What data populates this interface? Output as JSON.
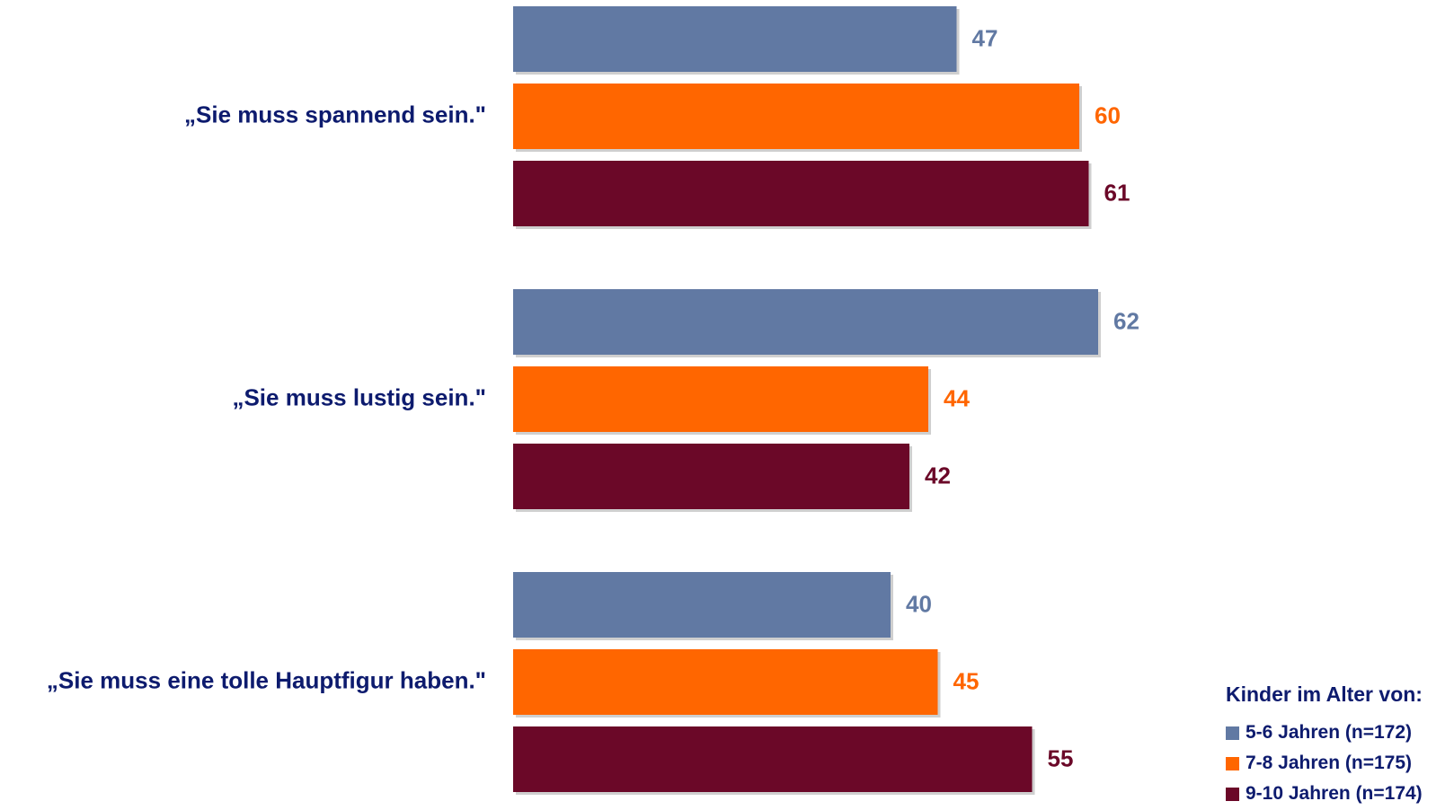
{
  "chart_data": {
    "type": "bar",
    "orientation": "horizontal",
    "categories": [
      "„Sie muss spannend sein.\"",
      "„Sie muss lustig sein.\"",
      "„Sie muss eine tolle Hauptfigur haben.\""
    ],
    "series": [
      {
        "name": "5-6 Jahren (n=172)",
        "color": "#6179a3",
        "values": [
          47,
          62,
          40
        ]
      },
      {
        "name": "7-8 Jahren (n=175)",
        "color": "#ff6600",
        "values": [
          60,
          44,
          45
        ]
      },
      {
        "name": "9-10 Jahren (n=174)",
        "color": "#6b0828",
        "values": [
          61,
          42,
          55
        ]
      }
    ],
    "xlim": [
      0,
      100
    ],
    "grid": false,
    "data_labels": true,
    "category_label_color": "#0d1b6e"
  },
  "legend": {
    "title": "Kinder im Alter von:",
    "placement": "bottom-right"
  }
}
